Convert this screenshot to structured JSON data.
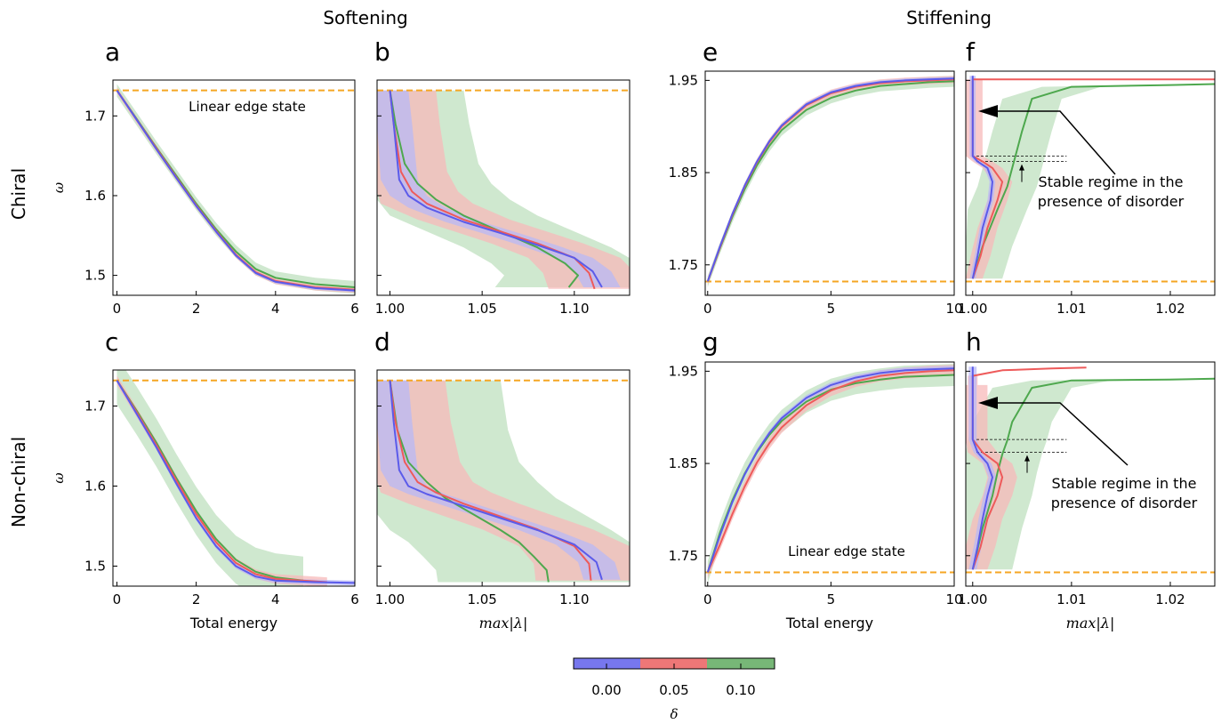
{
  "figure": {
    "group_titles": [
      "Softening",
      "Stiffening"
    ],
    "row_labels": [
      "Chiral",
      "Non-chiral"
    ],
    "colorbar": {
      "label": "δ",
      "ticks": [
        "0.00",
        "0.05",
        "0.10"
      ],
      "colors": [
        "#7777ee",
        "#ee7777",
        "#77b777"
      ]
    },
    "colors": {
      "blue": "#5b5bea",
      "red": "#ee5a5a",
      "green": "#4ea84e",
      "orange_dashed": "#f5a623",
      "blue_band": "#b8b8f5",
      "red_band": "#f7b9b9",
      "green_band": "#bfe0bf"
    }
  },
  "chart_data": [
    {
      "panel": "a",
      "type": "line",
      "xlabel": "",
      "ylabel": "ω",
      "xlim": [
        -0.1,
        6.0
      ],
      "ylim": [
        1.475,
        1.745
      ],
      "xticks": [
        "0",
        "2",
        "4",
        "6"
      ],
      "yticks": [
        "1.5",
        "1.6",
        "1.7"
      ],
      "annotation": "Linear edge state",
      "reference_line": 1.732,
      "series": [
        {
          "color": "blue",
          "x": [
            0,
            0.5,
            1,
            1.5,
            2,
            2.5,
            3,
            3.5,
            4,
            5,
            6
          ],
          "y": [
            1.732,
            1.695,
            1.658,
            1.622,
            1.587,
            1.555,
            1.525,
            1.503,
            1.492,
            1.484,
            1.481
          ],
          "band": 0.002
        },
        {
          "color": "red",
          "x": [
            0,
            0.5,
            1,
            1.5,
            2,
            2.5,
            3,
            3.5,
            4,
            5,
            6
          ],
          "y": [
            1.732,
            1.695,
            1.659,
            1.623,
            1.588,
            1.556,
            1.526,
            1.504,
            1.493,
            1.485,
            1.482
          ],
          "band": 0.004
        },
        {
          "color": "green",
          "x": [
            0,
            0.5,
            1,
            1.5,
            2,
            2.5,
            3,
            3.5,
            4,
            5,
            6
          ],
          "y": [
            1.732,
            1.696,
            1.66,
            1.625,
            1.59,
            1.558,
            1.53,
            1.508,
            1.497,
            1.489,
            1.485
          ],
          "band": 0.008
        }
      ]
    },
    {
      "panel": "b",
      "type": "line",
      "xlabel": "",
      "ylabel": "",
      "xlim": [
        0.993,
        1.13
      ],
      "ylim": [
        1.475,
        1.745
      ],
      "xticks": [
        "1.00",
        "1.05",
        "1.10"
      ],
      "yticks": [],
      "reference_line": 1.732,
      "series": [
        {
          "color": "blue",
          "x": [
            1.0,
            1.002,
            1.005,
            1.01,
            1.02,
            1.04,
            1.06,
            1.08,
            1.1,
            1.11,
            1.115
          ],
          "y": [
            1.732,
            1.69,
            1.62,
            1.6,
            1.585,
            1.567,
            1.553,
            1.538,
            1.522,
            1.505,
            1.485
          ],
          "band": 0.01
        },
        {
          "color": "red",
          "x": [
            1.0,
            1.002,
            1.006,
            1.012,
            1.02,
            1.04,
            1.06,
            1.08,
            1.1,
            1.108,
            1.111
          ],
          "y": [
            1.732,
            1.69,
            1.63,
            1.605,
            1.59,
            1.57,
            1.555,
            1.54,
            1.522,
            1.503,
            1.483
          ],
          "band": 0.025
        },
        {
          "color": "green",
          "x": [
            1.0,
            1.003,
            1.008,
            1.015,
            1.025,
            1.04,
            1.06,
            1.08,
            1.095,
            1.102,
            1.097
          ],
          "y": [
            1.732,
            1.69,
            1.64,
            1.615,
            1.595,
            1.575,
            1.555,
            1.535,
            1.515,
            1.5,
            1.485
          ],
          "band": 0.04
        }
      ]
    },
    {
      "panel": "c",
      "type": "line",
      "xlabel": "Total energy",
      "ylabel": "ω",
      "xlim": [
        -0.1,
        6.0
      ],
      "ylim": [
        1.475,
        1.745
      ],
      "xticks": [
        "0",
        "2",
        "4",
        "6"
      ],
      "yticks": [
        "1.5",
        "1.6",
        "1.7"
      ],
      "reference_line": 1.732,
      "series": [
        {
          "color": "blue",
          "x": [
            0,
            0.5,
            1,
            1.5,
            2,
            2.5,
            3,
            3.5,
            4,
            5,
            6
          ],
          "y": [
            1.732,
            1.69,
            1.648,
            1.603,
            1.56,
            1.525,
            1.5,
            1.487,
            1.482,
            1.48,
            1.479
          ],
          "band": 0.003
        },
        {
          "color": "red",
          "x": [
            0,
            0.5,
            1,
            1.5,
            2,
            2.5,
            3,
            3.5,
            4,
            5,
            5.3
          ],
          "y": [
            1.732,
            1.692,
            1.651,
            1.607,
            1.565,
            1.53,
            1.504,
            1.49,
            1.484,
            1.481,
            1.48
          ],
          "band": 0.006
        },
        {
          "color": "green",
          "x": [
            0,
            0.5,
            1,
            1.5,
            2,
            2.5,
            3,
            3.5,
            4,
            4.7
          ],
          "y": [
            1.732,
            1.694,
            1.654,
            1.61,
            1.569,
            1.534,
            1.508,
            1.493,
            1.486,
            1.482
          ],
          "band": 0.03
        }
      ]
    },
    {
      "panel": "d",
      "type": "line",
      "xlabel": "max|λ|",
      "ylabel": "",
      "xlim": [
        0.993,
        1.13
      ],
      "ylim": [
        1.475,
        1.745
      ],
      "xticks": [
        "1.00",
        "1.05",
        "1.10"
      ],
      "yticks": [],
      "reference_line": 1.732,
      "series": [
        {
          "color": "blue",
          "x": [
            1.0,
            1.002,
            1.005,
            1.01,
            1.02,
            1.04,
            1.06,
            1.08,
            1.1,
            1.112,
            1.115
          ],
          "y": [
            1.732,
            1.68,
            1.62,
            1.6,
            1.59,
            1.575,
            1.56,
            1.545,
            1.527,
            1.505,
            1.483
          ],
          "band": 0.01
        },
        {
          "color": "red",
          "x": [
            1.0,
            1.003,
            1.008,
            1.015,
            1.025,
            1.04,
            1.06,
            1.08,
            1.1,
            1.108,
            1.109
          ],
          "y": [
            1.732,
            1.68,
            1.63,
            1.605,
            1.592,
            1.578,
            1.562,
            1.546,
            1.525,
            1.503,
            1.482
          ],
          "band": 0.03
        },
        {
          "color": "green",
          "x": [
            1.0,
            1.004,
            1.01,
            1.02,
            1.03,
            1.045,
            1.06,
            1.07,
            1.078,
            1.085,
            1.086
          ],
          "y": [
            1.732,
            1.67,
            1.63,
            1.605,
            1.585,
            1.565,
            1.545,
            1.53,
            1.512,
            1.495,
            1.48
          ],
          "band": 0.06
        }
      ]
    },
    {
      "panel": "e",
      "type": "line",
      "xlabel": "",
      "ylabel": "",
      "xlim": [
        -0.1,
        10.0
      ],
      "ylim": [
        1.717,
        1.96
      ],
      "xticks": [
        "0",
        "5",
        "10"
      ],
      "yticks": [
        "1.75",
        "1.85",
        "1.95"
      ],
      "reference_line": 1.732,
      "series": [
        {
          "color": "blue",
          "x": [
            0,
            0.5,
            1,
            1.5,
            2,
            2.5,
            3,
            4,
            5,
            6,
            7,
            8,
            9,
            10
          ],
          "y": [
            1.732,
            1.77,
            1.805,
            1.836,
            1.862,
            1.884,
            1.901,
            1.924,
            1.937,
            1.944,
            1.948,
            1.95,
            1.951,
            1.952
          ],
          "band": 0.002
        },
        {
          "color": "red",
          "x": [
            0,
            0.5,
            1,
            1.5,
            2,
            2.5,
            3,
            4,
            5,
            6,
            7,
            8,
            9,
            10
          ],
          "y": [
            1.732,
            1.769,
            1.804,
            1.835,
            1.861,
            1.883,
            1.9,
            1.923,
            1.936,
            1.943,
            1.947,
            1.949,
            1.95,
            1.951
          ],
          "band": 0.004
        },
        {
          "color": "green",
          "x": [
            0,
            0.5,
            1,
            1.5,
            2,
            2.5,
            3,
            4,
            5,
            6,
            7,
            8,
            9,
            10
          ],
          "y": [
            1.732,
            1.768,
            1.802,
            1.832,
            1.858,
            1.879,
            1.896,
            1.918,
            1.931,
            1.939,
            1.944,
            1.946,
            1.948,
            1.949
          ],
          "band": 0.006
        }
      ]
    },
    {
      "panel": "f",
      "type": "line",
      "xlabel": "",
      "ylabel": "",
      "xlim": [
        0.9993,
        1.0245
      ],
      "ylim": [
        1.717,
        1.96
      ],
      "xticks": [
        "1.00",
        "1.01",
        "1.02"
      ],
      "yticks": [],
      "reference_line": 1.732,
      "annotation": "Stable regime in the presence of disorder",
      "stable_regime": [
        1.862,
        1.868
      ],
      "series": [
        {
          "color": "blue",
          "x": [
            1.0,
            1.0,
            1.0,
            1.0005,
            1.0015,
            1.002,
            1.0018,
            1.001,
            1.0005,
            1.0
          ],
          "y": [
            1.955,
            1.9,
            1.868,
            1.862,
            1.855,
            1.84,
            1.82,
            1.79,
            1.76,
            1.735
          ],
          "band": 0.0003
        },
        {
          "color": "red",
          "x": [
            1.0,
            1.005,
            1.015,
            1.0245
          ],
          "y": [
            1.951,
            1.951,
            1.951,
            1.951
          ],
          "band": 0.0005
        },
        {
          "color": "red",
          "x": [
            1.0,
            1.0,
            1.0,
            1.001,
            1.002,
            1.003,
            1.0025,
            1.0015,
            1.0008,
            1.0
          ],
          "y": [
            1.951,
            1.92,
            1.868,
            1.862,
            1.855,
            1.84,
            1.82,
            1.79,
            1.76,
            1.735
          ],
          "band": 0.001
        },
        {
          "color": "green",
          "x": [
            1.0,
            1.001,
            1.0025,
            1.0035,
            1.004,
            1.0045,
            1.005,
            1.006,
            1.01,
            1.02,
            1.0245
          ],
          "y": [
            1.735,
            1.77,
            1.81,
            1.835,
            1.855,
            1.875,
            1.895,
            1.93,
            1.943,
            1.945,
            1.946
          ],
          "band": 0.003
        }
      ]
    },
    {
      "panel": "g",
      "type": "line",
      "xlabel": "Total energy",
      "ylabel": "",
      "xlim": [
        -0.1,
        10.0
      ],
      "ylim": [
        1.717,
        1.96
      ],
      "xticks": [
        "0",
        "5",
        "10"
      ],
      "yticks": [
        "1.75",
        "1.85",
        "1.95"
      ],
      "annotation": "Linear edge state",
      "reference_line": 1.732,
      "series": [
        {
          "color": "blue",
          "x": [
            0,
            0.5,
            1,
            1.5,
            2,
            2.5,
            3,
            4,
            5,
            6,
            7,
            8,
            9,
            10
          ],
          "y": [
            1.732,
            1.772,
            1.808,
            1.838,
            1.863,
            1.883,
            1.899,
            1.921,
            1.935,
            1.943,
            1.948,
            1.951,
            1.952,
            1.953
          ],
          "band": 0.003
        },
        {
          "color": "red",
          "x": [
            0,
            0.5,
            1,
            1.5,
            2,
            2.5,
            3,
            4,
            5,
            6,
            7,
            8,
            9,
            10
          ],
          "y": [
            1.732,
            1.762,
            1.795,
            1.825,
            1.851,
            1.872,
            1.889,
            1.913,
            1.929,
            1.939,
            1.945,
            1.948,
            1.95,
            1.951
          ],
          "band": 0.006
        },
        {
          "color": "green",
          "x": [
            0,
            0.5,
            1,
            1.5,
            2,
            2.5,
            3,
            4,
            5,
            6,
            7,
            8,
            9,
            10
          ],
          "y": [
            1.732,
            1.775,
            1.81,
            1.839,
            1.862,
            1.881,
            1.896,
            1.917,
            1.93,
            1.937,
            1.941,
            1.944,
            1.945,
            1.946
          ],
          "band": 0.012
        }
      ]
    },
    {
      "panel": "h",
      "type": "line",
      "xlabel": "max|λ|",
      "ylabel": "",
      "xlim": [
        0.9993,
        1.0245
      ],
      "ylim": [
        1.717,
        1.96
      ],
      "xticks": [
        "1.00",
        "1.01",
        "1.02"
      ],
      "yticks": [],
      "reference_line": 1.732,
      "annotation": "Stable regime in the presence of disorder",
      "stable_regime": [
        1.862,
        1.876
      ],
      "series": [
        {
          "color": "blue",
          "x": [
            1.0,
            1.0,
            1.0,
            1.0005,
            1.0015,
            1.002,
            1.0015,
            1.001,
            1.0005,
            1.0
          ],
          "y": [
            1.955,
            1.9,
            1.876,
            1.862,
            1.85,
            1.835,
            1.815,
            1.79,
            1.76,
            1.735
          ],
          "band": 0.0004
        },
        {
          "color": "red",
          "x": [
            1.0,
            1.0,
            1.003,
            1.008,
            1.0115
          ],
          "y": [
            1.935,
            1.945,
            1.951,
            1.953,
            1.954
          ],
          "band": 0.0005
        },
        {
          "color": "red",
          "x": [
            1.0,
            1.0,
            1.0,
            1.001,
            1.0025,
            1.003,
            1.0025,
            1.0015,
            1.0008,
            1.0
          ],
          "y": [
            1.935,
            1.9,
            1.876,
            1.862,
            1.85,
            1.835,
            1.815,
            1.79,
            1.76,
            1.735
          ],
          "band": 0.0015
        },
        {
          "color": "green",
          "x": [
            1.0,
            1.001,
            1.002,
            1.0025,
            1.003,
            1.0035,
            1.004,
            1.006,
            1.01,
            1.02,
            1.0245
          ],
          "y": [
            1.735,
            1.78,
            1.815,
            1.84,
            1.86,
            1.875,
            1.895,
            1.932,
            1.94,
            1.941,
            1.942
          ],
          "band": 0.004
        }
      ]
    }
  ]
}
